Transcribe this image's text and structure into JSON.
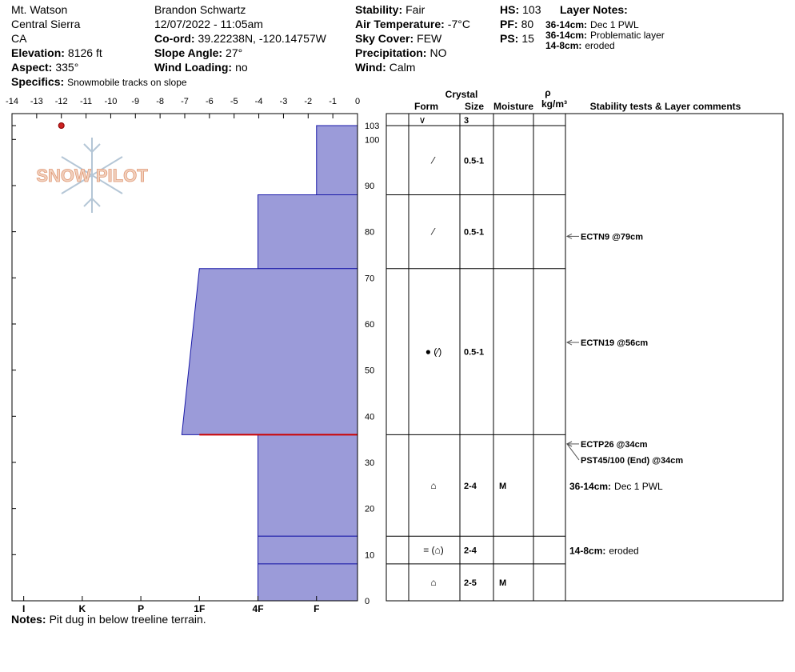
{
  "header": {
    "site": "Mt. Watson",
    "range": "Central Sierra",
    "state": "CA",
    "elevation": {
      "label": "Elevation:",
      "value": "8126 ft"
    },
    "aspect": {
      "label": "Aspect:",
      "value": "335°"
    },
    "specifics": {
      "label": "Specifics:",
      "value": "Snowmobile tracks on slope"
    },
    "observer": "Brandon Schwartz",
    "datetime": "12/07/2022 - 11:05am",
    "coord": {
      "label": "Co-ord:",
      "value": "39.22238N, -120.14757W"
    },
    "slope": {
      "label": "Slope Angle:",
      "value": "27°"
    },
    "wind_loading": {
      "label": "Wind Loading:",
      "value": "no"
    },
    "stability": {
      "label": "Stability:",
      "value": "Fair"
    },
    "air_temp": {
      "label": "Air Temperature:",
      "value": "-7°C"
    },
    "sky": {
      "label": "Sky Cover:",
      "value": "FEW"
    },
    "precip": {
      "label": "Precipitation:",
      "value": "NO"
    },
    "wind": {
      "label": "Wind:",
      "value": "Calm"
    },
    "hs": {
      "label": "HS:",
      "value": "103"
    },
    "pf": {
      "label": "PF:",
      "value": "80"
    },
    "ps": {
      "label": "PS:",
      "value": "15"
    },
    "layer_notes_title": "Layer Notes:",
    "layer_notes": [
      {
        "label": "36-14cm:",
        "value": "Dec 1 PWL"
      },
      {
        "label": "36-14cm:",
        "value": "Problematic layer"
      },
      {
        "label": "14-8cm:",
        "value": "eroded"
      }
    ],
    "logo": "SNOW PILOT"
  },
  "notes": {
    "label": "Notes:",
    "value": "Pit dug in below treeline terrain."
  },
  "chart_data": {
    "type": "snow-profile",
    "xlim": [
      -14,
      0
    ],
    "xticks": [
      -14,
      -13,
      -12,
      -11,
      -10,
      -9,
      -8,
      -7,
      -6,
      -5,
      -4,
      -3,
      -2,
      -1,
      0
    ],
    "hardness_lim": [
      6.2,
      0.3
    ],
    "hardness_ticks": [
      {
        "value": 6,
        "label": "I"
      },
      {
        "value": 5,
        "label": "K"
      },
      {
        "value": 4,
        "label": "P"
      },
      {
        "value": 3,
        "label": "1F"
      },
      {
        "value": 2,
        "label": "4F"
      },
      {
        "value": 1,
        "label": "F"
      }
    ],
    "ylim": [
      0,
      103
    ],
    "yticks": [
      0,
      10,
      20,
      30,
      40,
      50,
      60,
      70,
      80,
      90,
      100,
      103
    ],
    "temperature": {
      "x": [
        -12
      ],
      "y": [
        103
      ],
      "color": "#cc2222"
    },
    "layer_color": "#9b9bd9",
    "layer_line_color": "#1a1aa8",
    "concern": {
      "height": 36,
      "color": "#cc0000"
    },
    "surface": {
      "form": "∨",
      "size": "3"
    },
    "layers": [
      {
        "top": 103,
        "bottom": 88,
        "hardness_top": 1,
        "hardness_bottom": 1,
        "form": "⁄",
        "size": "0.5-1",
        "moisture": null
      },
      {
        "top": 88,
        "bottom": 72,
        "hardness_top": 2,
        "hardness_bottom": 2,
        "form": "⁄",
        "size": "0.5-1",
        "moisture": null
      },
      {
        "top": 72,
        "bottom": 36,
        "hardness_top": 3,
        "hardness_bottom": 3.3,
        "form": "● (⁄)",
        "size": "0.5-1",
        "moisture": null
      },
      {
        "top": 36,
        "bottom": 14,
        "hardness_top": 2,
        "hardness_bottom": 2,
        "form": "⌂",
        "size": "2-4",
        "moisture": "M"
      },
      {
        "top": 14,
        "bottom": 8,
        "hardness_top": 2,
        "hardness_bottom": 2,
        "form": "= (⌂)",
        "size": "2-4",
        "moisture": null
      },
      {
        "top": 8,
        "bottom": 0,
        "hardness_top": 2,
        "hardness_bottom": 2,
        "form": "⌂",
        "size": "2-5",
        "moisture": "M"
      }
    ],
    "columns": {
      "crystal": "Crystal",
      "form": "Form",
      "size": "Size",
      "moisture": "Moisture",
      "density": "ρ",
      "density_unit": "kg/m³",
      "tests": "Stability tests & Layer comments"
    },
    "tests": [
      {
        "label": "ECTN9 @79cm",
        "height": 79
      },
      {
        "label": "ECTN19 @56cm",
        "height": 56
      },
      {
        "label": "ECTP26 @34cm",
        "height": 34
      },
      {
        "label": "PST45/100 (End) @34cm",
        "height": 34
      }
    ],
    "comments": [
      {
        "depth": "36-14cm:",
        "text": "Dec 1 PWL",
        "top": 36,
        "bottom": 14
      },
      {
        "depth": "14-8cm:",
        "text": "eroded",
        "top": 14,
        "bottom": 8
      }
    ]
  }
}
